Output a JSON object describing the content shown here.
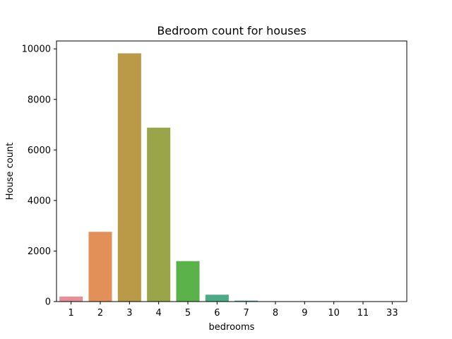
{
  "chart_data": {
    "type": "bar",
    "title": "Bedroom count for houses",
    "xlabel": "bedrooms",
    "ylabel": "House count",
    "categories": [
      "1",
      "2",
      "3",
      "4",
      "5",
      "6",
      "7",
      "8",
      "9",
      "10",
      "11",
      "33"
    ],
    "values": [
      199,
      2760,
      9824,
      6882,
      1601,
      272,
      38,
      13,
      6,
      3,
      1,
      1
    ],
    "ylim": [
      0,
      10313
    ],
    "yticks": [
      0,
      2000,
      4000,
      6000,
      8000,
      10000
    ],
    "grid": false,
    "legend": "none",
    "colors": [
      "#e88e96",
      "#e39058",
      "#bb9a47",
      "#99a548",
      "#5bb14a",
      "#4bab87",
      "#4aa9a5",
      "#4ca5c0",
      "#6d9fdc",
      "#a78fdc",
      "#d785d8",
      "#e084b1"
    ]
  }
}
